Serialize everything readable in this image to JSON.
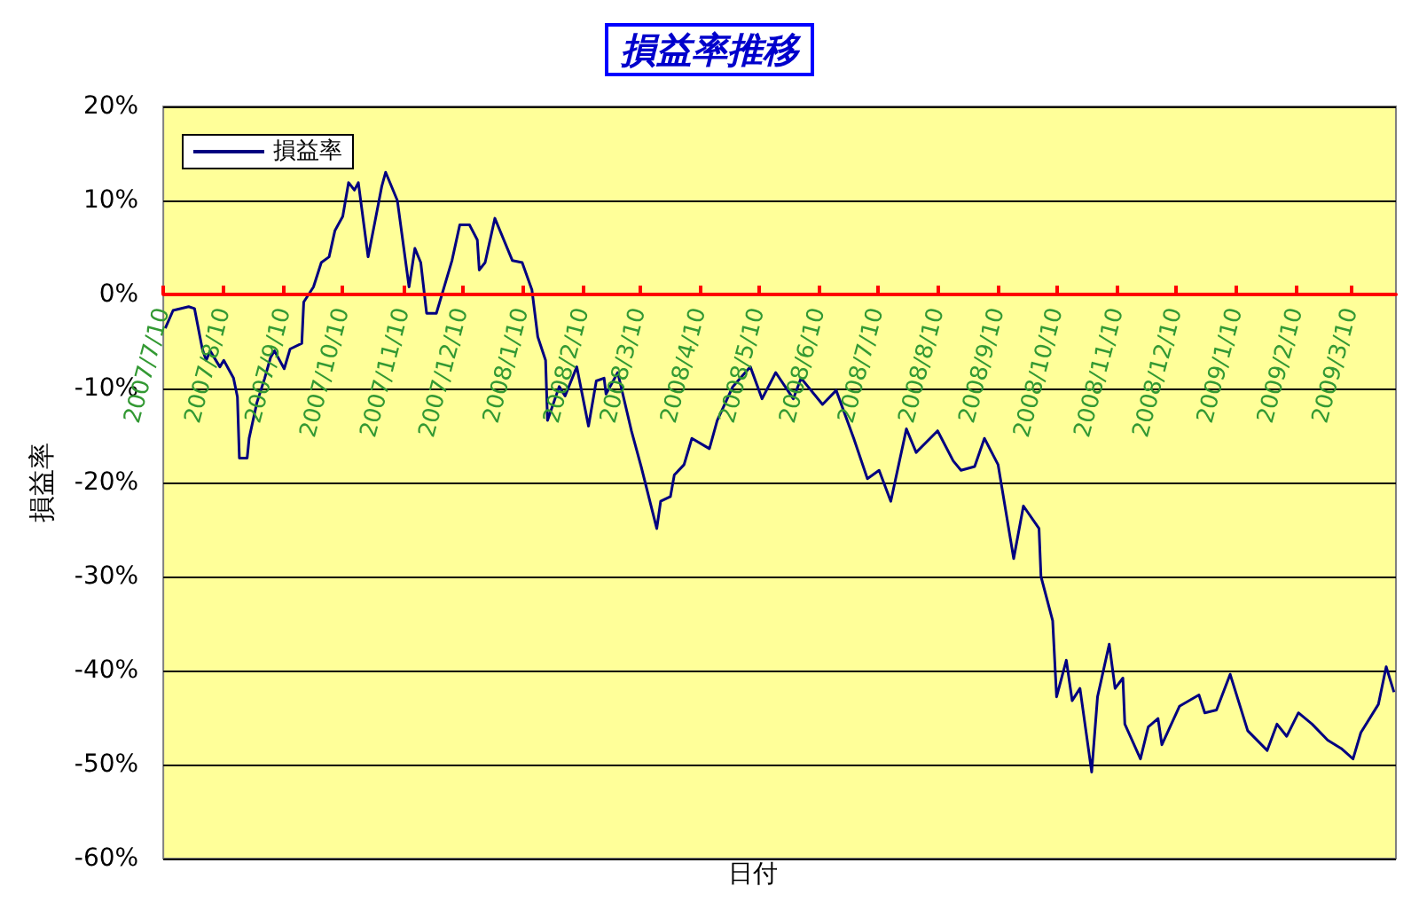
{
  "chart_data": {
    "type": "line",
    "title": "損益率推移",
    "xlabel": "日付",
    "ylabel": "損益率",
    "x": [
      "2007-07-11",
      "2007-07-15",
      "2007-07-23",
      "2007-07-26",
      "2007-07-30",
      "2007-08-01",
      "2007-08-03",
      "2007-08-08",
      "2007-08-10",
      "2007-08-15",
      "2007-08-17",
      "2007-08-18",
      "2007-08-22",
      "2007-08-23",
      "2007-08-27",
      "2007-08-31",
      "2007-09-03",
      "2007-09-05",
      "2007-09-10",
      "2007-09-13",
      "2007-09-19",
      "2007-09-20",
      "2007-09-25",
      "2007-09-29",
      "2007-10-03",
      "2007-10-06",
      "2007-10-10",
      "2007-10-13",
      "2007-10-16",
      "2007-10-18",
      "2007-10-23",
      "2007-10-26",
      "2007-10-30",
      "2007-11-01",
      "2007-11-07",
      "2007-11-13",
      "2007-11-16",
      "2007-11-19",
      "2007-11-22",
      "2007-11-27",
      "2007-12-05",
      "2007-12-09",
      "2007-12-14",
      "2007-12-18",
      "2007-12-19",
      "2007-12-22",
      "2007-12-27",
      "2008-01-05",
      "2008-01-10",
      "2008-01-15",
      "2008-01-18",
      "2008-01-22",
      "2008-01-23",
      "2008-01-29",
      "2008-02-01",
      "2008-02-07",
      "2008-02-13",
      "2008-02-17",
      "2008-02-21",
      "2008-02-22",
      "2008-02-28",
      "2008-03-06",
      "2008-03-11",
      "2008-03-19",
      "2008-03-21",
      "2008-03-26",
      "2008-03-28",
      "2008-04-02",
      "2008-04-06",
      "2008-04-15",
      "2008-04-19",
      "2008-04-27",
      "2008-05-06",
      "2008-05-12",
      "2008-05-19",
      "2008-05-28",
      "2008-06-01",
      "2008-06-12",
      "2008-06-19",
      "2008-06-28",
      "2008-07-05",
      "2008-07-11",
      "2008-07-17",
      "2008-07-25",
      "2008-07-30",
      "2008-08-10",
      "2008-08-18",
      "2008-08-22",
      "2008-08-29",
      "2008-09-03",
      "2008-09-10",
      "2008-09-18",
      "2008-09-23",
      "2008-10-01",
      "2008-10-02",
      "2008-10-08",
      "2008-10-10",
      "2008-10-15",
      "2008-10-18",
      "2008-10-22",
      "2008-10-28",
      "2008-10-31",
      "2008-11-06",
      "2008-11-09",
      "2008-11-13",
      "2008-11-14",
      "2008-11-22",
      "2008-11-26",
      "2008-12-01",
      "2008-12-03",
      "2008-12-12",
      "2008-12-22",
      "2008-12-25",
      "2008-12-31",
      "2009-01-07",
      "2009-01-16",
      "2009-01-26",
      "2009-01-31",
      "2009-02-05",
      "2009-02-11",
      "2009-02-18",
      "2009-02-26",
      "2009-03-05",
      "2009-03-11",
      "2009-03-15",
      "2009-03-24",
      "2009-03-28",
      "2009-04-01"
    ],
    "series": [
      {
        "name": "損益率",
        "color": "#000080",
        "values": [
          -3.6,
          -1.7,
          -1.3,
          -1.5,
          -5.8,
          -7,
          -6,
          -7.7,
          -7,
          -8.9,
          -10.9,
          -17.4,
          -17.4,
          -15.3,
          -11.5,
          -8.9,
          -6.7,
          -6,
          -7.9,
          -5.8,
          -5.2,
          -0.8,
          0.8,
          3.4,
          4,
          6.8,
          8.3,
          11.9,
          11.1,
          11.9,
          4,
          7.2,
          11.5,
          13,
          10,
          0.8,
          4.9,
          3.4,
          -2,
          -2,
          3.6,
          7.4,
          7.4,
          5.8,
          2.6,
          3.4,
          8.1,
          3.6,
          3.4,
          0.5,
          -4.5,
          -7,
          -13.4,
          -9.8,
          -10.8,
          -7.7,
          -14,
          -9.2,
          -8.9,
          -10.6,
          -8.3,
          -14.5,
          -18.3,
          -24.9,
          -22,
          -21.5,
          -19.2,
          -18.1,
          -15.3,
          -16.4,
          -13.4,
          -9.8,
          -7.7,
          -11.1,
          -8.3,
          -11.1,
          -8.9,
          -11.7,
          -10.2,
          -15.3,
          -19.6,
          -18.7,
          -22,
          -14.3,
          -16.8,
          -14.5,
          -17.7,
          -18.7,
          -18.3,
          -15.3,
          -18.1,
          -28.1,
          -22.5,
          -24.9,
          -30,
          -34.7,
          -42.8,
          -38.9,
          -43.2,
          -41.9,
          -50.8,
          -42.8,
          -37.2,
          -41.9,
          -40.8,
          -45.7,
          -49.4,
          -46,
          -45.1,
          -47.9,
          -43.8,
          -42.6,
          -44.5,
          -44.2,
          -40.4,
          -46.4,
          -48.5,
          -45.7,
          -47,
          -44.5,
          -45.7,
          -47.4,
          -48.3,
          -49.4,
          -46.6,
          -43.6,
          -39.6,
          -42.3
        ]
      }
    ],
    "xlim": [
      "2007-07-10",
      "2009-04-02"
    ],
    "xticks": [
      {
        "value": "2007-07-10",
        "label": "2007/7/10"
      },
      {
        "value": "2007-08-10",
        "label": "2007/8/10"
      },
      {
        "value": "2007-09-10",
        "label": "2007/9/10"
      },
      {
        "value": "2007-10-10",
        "label": "2007/10/10"
      },
      {
        "value": "2007-11-10",
        "label": "2007/11/10"
      },
      {
        "value": "2007-12-10",
        "label": "2007/12/10"
      },
      {
        "value": "2008-01-10",
        "label": "2008/1/10"
      },
      {
        "value": "2008-02-10",
        "label": "2008/2/10"
      },
      {
        "value": "2008-03-10",
        "label": "2008/3/10"
      },
      {
        "value": "2008-04-10",
        "label": "2008/4/10"
      },
      {
        "value": "2008-05-10",
        "label": "2008/5/10"
      },
      {
        "value": "2008-06-10",
        "label": "2008/6/10"
      },
      {
        "value": "2008-07-10",
        "label": "2008/7/10"
      },
      {
        "value": "2008-08-10",
        "label": "2008/8/10"
      },
      {
        "value": "2008-09-10",
        "label": "2008/9/10"
      },
      {
        "value": "2008-10-10",
        "label": "2008/10/10"
      },
      {
        "value": "2008-11-10",
        "label": "2008/11/10"
      },
      {
        "value": "2008-12-10",
        "label": "2008/12/10"
      },
      {
        "value": "2009-01-10",
        "label": "2009/1/10"
      },
      {
        "value": "2009-02-10",
        "label": "2009/2/10"
      },
      {
        "value": "2009-03-10",
        "label": "2009/3/10"
      }
    ],
    "ylim": [
      -60,
      20
    ],
    "yticks": [
      {
        "value": -60,
        "label": "-60%"
      },
      {
        "value": -50,
        "label": "-50%"
      },
      {
        "value": -40,
        "label": "-40%"
      },
      {
        "value": -30,
        "label": "-30%"
      },
      {
        "value": -20,
        "label": "-20%"
      },
      {
        "value": -10,
        "label": "-10%"
      },
      {
        "value": 0,
        "label": "0%"
      },
      {
        "value": 10,
        "label": "10%"
      },
      {
        "value": 20,
        "label": "20%"
      }
    ],
    "grid": "y",
    "legend": "top left",
    "marker": "none",
    "line_style": "solid"
  }
}
